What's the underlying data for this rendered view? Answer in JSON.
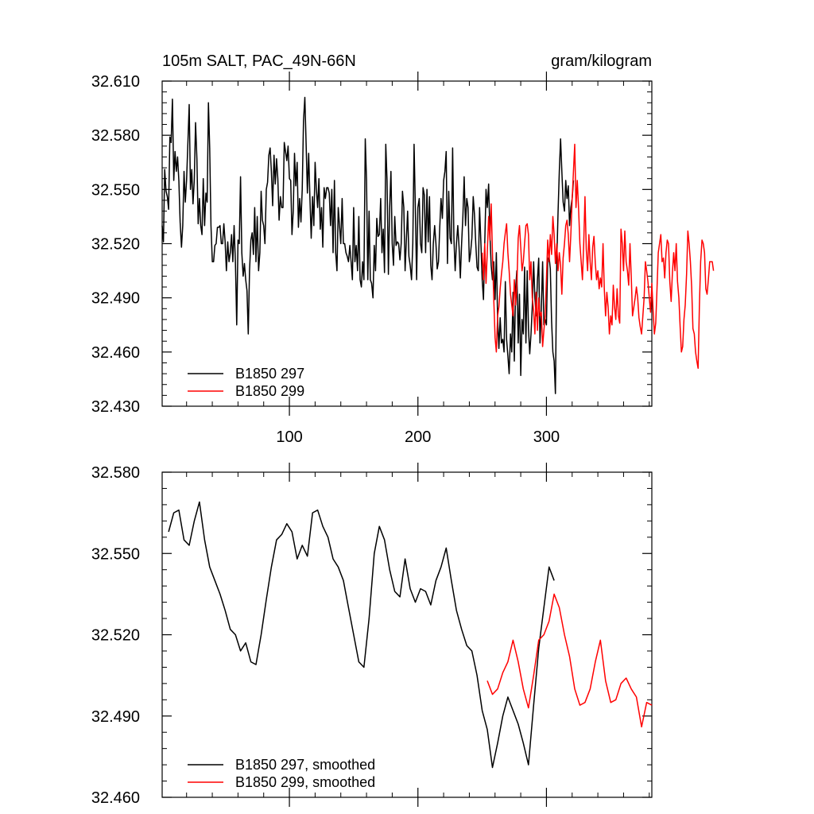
{
  "title_left": "105m SALT, PAC_49N-66N",
  "title_right": "gram/kilogram",
  "chart_data": [
    {
      "type": "line",
      "name": "raw",
      "xlim": [
        1,
        382
      ],
      "ylim": [
        32.43,
        32.61
      ],
      "x_ticks": [
        100,
        200,
        300
      ],
      "x_tick_labels": [
        "100",
        "200",
        "300"
      ],
      "y_ticks": [
        32.43,
        32.46,
        32.49,
        32.52,
        32.55,
        32.58,
        32.61
      ],
      "y_tick_labels": [
        "32.430",
        "32.460",
        "32.490",
        "32.520",
        "32.550",
        "32.580",
        "32.610"
      ],
      "series": [
        {
          "name": "B1850 297",
          "color": "#000000",
          "x_start": 1,
          "values": [
            32.53,
            32.521,
            32.561,
            32.549,
            32.546,
            32.539,
            32.579,
            32.576,
            32.6,
            32.555,
            32.571,
            32.56,
            32.568,
            32.555,
            32.532,
            32.518,
            32.53,
            32.56,
            32.543,
            32.555,
            32.575,
            32.597,
            32.55,
            32.561,
            32.542,
            32.555,
            32.587,
            32.567,
            32.531,
            32.545,
            32.53,
            32.525,
            32.556,
            32.53,
            32.548,
            32.543,
            32.598,
            32.573,
            32.53,
            32.51,
            32.51,
            32.519,
            32.52,
            32.529,
            32.529,
            32.53,
            32.52,
            32.52,
            32.531,
            32.521,
            32.505,
            32.521,
            32.51,
            32.515,
            32.525,
            32.51,
            32.53,
            32.509,
            32.475,
            32.522,
            32.52,
            32.557,
            32.515,
            32.502,
            32.509,
            32.5,
            32.494,
            32.47,
            32.505,
            32.522,
            32.526,
            32.514,
            32.54,
            32.51,
            32.535,
            32.505,
            32.515,
            32.549,
            32.533,
            32.53,
            32.52,
            32.55,
            32.554,
            32.569,
            32.573,
            32.56,
            32.541,
            32.569,
            32.553,
            32.567,
            32.556,
            32.533,
            32.546,
            32.54,
            32.54,
            32.576,
            32.571,
            32.566,
            32.574,
            32.556,
            32.555,
            32.525,
            32.538,
            32.57,
            32.552,
            32.565,
            32.529,
            32.545,
            32.532,
            32.55,
            32.588,
            32.601,
            32.575,
            32.548,
            32.57,
            32.545,
            32.523,
            32.546,
            32.53,
            32.565,
            32.55,
            32.54,
            32.556,
            32.528,
            32.54,
            32.518,
            32.551,
            32.545,
            32.551,
            32.551,
            32.548,
            32.53,
            32.55,
            32.515,
            32.555,
            32.515,
            32.505,
            32.54,
            32.53,
            32.52,
            32.545,
            32.52,
            32.52,
            32.515,
            32.513,
            32.51,
            32.519,
            32.51,
            32.5,
            32.54,
            32.51,
            32.519,
            32.505,
            32.535,
            32.5,
            32.496,
            32.51,
            32.5,
            32.578,
            32.555,
            32.5,
            32.538,
            32.5,
            32.498,
            32.49,
            32.519,
            32.505,
            32.534,
            32.524,
            32.525,
            32.545,
            32.515,
            32.528,
            32.504,
            32.575,
            32.555,
            32.503,
            32.54,
            32.56,
            32.52,
            32.508,
            32.535,
            32.519,
            32.521,
            32.52,
            32.511,
            32.52,
            32.549,
            32.54,
            32.505,
            32.522,
            32.538,
            32.513,
            32.508,
            32.5,
            32.52,
            32.575,
            32.54,
            32.5,
            32.54,
            32.545,
            32.52,
            32.515,
            32.551,
            32.547,
            32.515,
            32.55,
            32.521,
            32.546,
            32.508,
            32.5,
            32.52,
            32.53,
            32.52,
            32.506,
            32.51,
            32.529,
            32.545,
            32.534,
            32.555,
            32.56,
            32.571,
            32.509,
            32.549,
            32.523,
            32.52,
            32.573,
            32.523,
            32.505,
            32.52,
            32.53,
            32.518,
            32.501,
            32.52,
            32.535,
            32.557,
            32.53,
            32.545,
            32.54,
            32.51,
            32.515,
            32.523,
            32.546,
            32.536,
            32.52,
            32.507,
            32.505,
            32.54,
            32.52,
            32.5,
            32.489,
            32.52,
            32.55,
            32.54,
            32.553,
            32.525,
            32.508,
            32.5,
            32.51,
            32.489,
            32.515,
            32.478,
            32.462,
            32.479,
            32.465,
            32.467,
            32.46,
            32.499,
            32.467,
            32.458,
            32.448,
            32.47,
            32.46,
            32.493,
            32.455,
            32.495,
            32.505,
            32.465,
            32.492,
            32.447,
            32.478,
            32.47,
            32.507,
            32.465,
            32.505,
            32.473,
            32.459,
            32.47,
            32.485,
            32.51,
            32.49,
            32.48,
            32.5,
            32.512,
            32.465,
            32.484,
            32.51,
            32.475,
            32.478,
            32.475,
            32.511,
            32.513,
            32.506,
            32.477,
            32.46,
            32.455,
            32.437,
            32.51,
            32.537,
            32.56,
            32.578,
            32.56,
            32.543,
            32.538,
            32.555,
            32.545,
            32.552,
            32.53,
            32.54,
            32.545,
            32.555
          ]
        },
        {
          "name": "B1850 299",
          "color": "#ff0000",
          "x_start": 250,
          "values": [
            32.515,
            32.5,
            32.52,
            32.498,
            32.515,
            32.535,
            32.522,
            32.542,
            32.515,
            32.49,
            32.468,
            32.46,
            32.48,
            32.485,
            32.495,
            32.503,
            32.51,
            32.52,
            32.526,
            32.531,
            32.515,
            32.505,
            32.492,
            32.486,
            32.48,
            32.5,
            32.486,
            32.497,
            32.523,
            32.53,
            32.518,
            32.505,
            32.51,
            32.52,
            32.53,
            32.531,
            32.525,
            32.5,
            32.51,
            32.49,
            32.483,
            32.47,
            32.493,
            32.472,
            32.49,
            32.48,
            32.482,
            32.463,
            32.472,
            32.48,
            32.5,
            32.522,
            32.51,
            32.525,
            32.514,
            32.535,
            32.525,
            32.509,
            32.52,
            32.505,
            32.515,
            32.508,
            32.492,
            32.512,
            32.52,
            32.53,
            32.533,
            32.525,
            32.51,
            32.525,
            32.545,
            32.56,
            32.575,
            32.54,
            32.555,
            32.54,
            32.52,
            32.51,
            32.5,
            32.52,
            32.546,
            32.517,
            32.505,
            32.525,
            32.51,
            32.5,
            32.518,
            32.524,
            32.509,
            32.5,
            32.505,
            32.495,
            32.501,
            32.496,
            32.52,
            32.495,
            32.48,
            32.493,
            32.485,
            32.47,
            32.48,
            32.475,
            32.497,
            32.485,
            32.478,
            32.495,
            32.48,
            32.476,
            32.528,
            32.52,
            32.505,
            32.527,
            32.51,
            32.505,
            32.497,
            32.52,
            32.502,
            32.48,
            32.485,
            32.49,
            32.496,
            32.49,
            32.479,
            32.474,
            32.47,
            32.48,
            32.49,
            32.51,
            32.505,
            32.499,
            32.49,
            32.482,
            32.498,
            32.483,
            32.47,
            32.476,
            32.495,
            32.515,
            32.52,
            32.525,
            32.51,
            32.512,
            32.501,
            32.515,
            32.522,
            32.52,
            32.499,
            32.488,
            32.504,
            32.515,
            32.505,
            32.52,
            32.499,
            32.49,
            32.474,
            32.46,
            32.463,
            32.478,
            32.486,
            32.503,
            32.527,
            32.52,
            32.51,
            32.496,
            32.473,
            32.47,
            32.46,
            32.455,
            32.451,
            32.485,
            32.51,
            32.522,
            32.52,
            32.515,
            32.495,
            32.492,
            32.5,
            32.51,
            32.51,
            32.51,
            32.505
          ]
        }
      ],
      "legend": [
        "B1850 297",
        "B1850 299"
      ]
    },
    {
      "type": "line",
      "name": "smoothed",
      "xlim": [
        1,
        382
      ],
      "ylim": [
        32.46,
        32.58
      ],
      "x_ticks": [
        100,
        200,
        300
      ],
      "x_tick_labels": [
        "",
        "",
        ""
      ],
      "y_ticks": [
        32.46,
        32.49,
        32.52,
        32.55,
        32.58
      ],
      "y_tick_labels": [
        "32.460",
        "32.490",
        "32.520",
        "32.550",
        "32.580"
      ],
      "series": [
        {
          "name": "B1850 297, smoothed",
          "color": "#000000",
          "x": [
            6,
            10,
            14,
            18,
            22,
            26,
            30,
            34,
            38,
            42,
            46,
            50,
            54,
            58,
            62,
            66,
            70,
            74,
            78,
            82,
            86,
            90,
            94,
            98,
            102,
            106,
            110,
            114,
            118,
            122,
            126,
            130,
            134,
            138,
            142,
            146,
            150,
            154,
            158,
            162,
            166,
            170,
            174,
            178,
            182,
            186,
            190,
            194,
            198,
            202,
            206,
            210,
            214,
            218,
            222,
            226,
            230,
            234,
            238,
            242,
            246,
            250,
            254,
            258,
            262,
            266,
            270,
            274,
            278,
            282,
            286,
            290,
            294,
            298,
            302,
            306
          ],
          "values": [
            32.558,
            32.565,
            32.566,
            32.555,
            32.553,
            32.562,
            32.569,
            32.555,
            32.545,
            32.54,
            32.535,
            32.529,
            32.522,
            32.52,
            32.514,
            32.517,
            32.51,
            32.509,
            32.52,
            32.533,
            32.545,
            32.555,
            32.557,
            32.561,
            32.558,
            32.548,
            32.553,
            32.549,
            32.565,
            32.566,
            32.56,
            32.556,
            32.548,
            32.545,
            32.54,
            32.53,
            32.52,
            32.51,
            32.508,
            32.526,
            32.55,
            32.56,
            32.555,
            32.544,
            32.536,
            32.534,
            32.548,
            32.537,
            32.532,
            32.537,
            32.536,
            32.531,
            32.54,
            32.545,
            32.552,
            32.54,
            32.529,
            32.522,
            32.516,
            32.514,
            32.505,
            32.492,
            32.485,
            32.471,
            32.48,
            32.49,
            32.497,
            32.492,
            32.487,
            32.48,
            32.472,
            32.494,
            32.515,
            32.53,
            32.545,
            32.54
          ]
        },
        {
          "name": "B1850 299, smoothed",
          "color": "#ff0000",
          "x": [
            254,
            258,
            262,
            266,
            270,
            274,
            278,
            282,
            286,
            290,
            294,
            298,
            302,
            306,
            310,
            314,
            318,
            322,
            326,
            330,
            334,
            338,
            342,
            346,
            350,
            354,
            358,
            362,
            366,
            370,
            374,
            378,
            382
          ],
          "values": [
            32.503,
            32.498,
            32.5,
            32.506,
            32.51,
            32.518,
            32.51,
            32.5,
            32.493,
            32.505,
            32.518,
            32.52,
            32.525,
            32.535,
            32.53,
            32.52,
            32.512,
            32.5,
            32.494,
            32.495,
            32.5,
            32.51,
            32.518,
            32.503,
            32.495,
            32.496,
            32.502,
            32.504,
            32.5,
            32.497,
            32.486,
            32.495,
            32.494
          ]
        }
      ],
      "legend": [
        "B1850 297, smoothed",
        "B1850 299, smoothed"
      ]
    }
  ]
}
